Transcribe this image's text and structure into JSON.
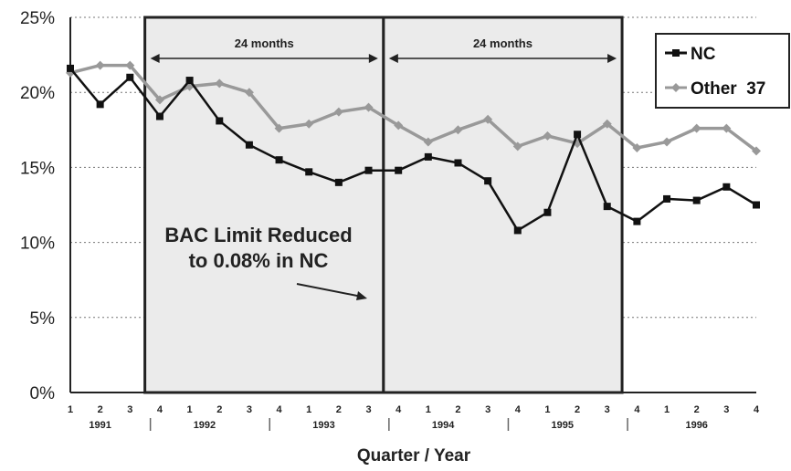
{
  "chart_data": {
    "type": "line",
    "xlabel": "Quarter / Year",
    "ylabel": "",
    "ylim": [
      0,
      25
    ],
    "y_ticks": [
      "0%",
      "5%",
      "10%",
      "15%",
      "20%",
      "25%"
    ],
    "x_quarters": [
      "1",
      "2",
      "3",
      "4",
      "1",
      "2",
      "3",
      "4",
      "1",
      "2",
      "3",
      "4",
      "1",
      "2",
      "3",
      "4",
      "1",
      "2",
      "3",
      "4",
      "1",
      "2",
      "3",
      "4"
    ],
    "years": [
      "1991",
      "1992",
      "1993",
      "1994",
      "1995",
      "1996"
    ],
    "series": [
      {
        "name": "NC",
        "color": "#111111",
        "marker": "square",
        "values": [
          21.6,
          19.2,
          21.0,
          18.4,
          20.8,
          18.1,
          16.5,
          15.5,
          14.7,
          14.0,
          14.8,
          14.8,
          15.7,
          15.3,
          14.1,
          10.8,
          12.0,
          17.2,
          12.4,
          11.4,
          12.9,
          12.8,
          13.7,
          12.5
        ]
      },
      {
        "name": "Other  37",
        "color": "#999999",
        "marker": "diamond",
        "values": [
          21.3,
          21.8,
          21.8,
          19.5,
          20.4,
          20.6,
          20.0,
          17.6,
          17.9,
          18.7,
          19.0,
          17.8,
          16.7,
          17.5,
          18.2,
          16.4,
          17.1,
          16.6,
          17.9,
          16.3,
          16.7,
          17.6,
          17.6,
          16.1
        ]
      }
    ],
    "grid": "horizontal",
    "legend": "top-right",
    "shaded_periods": [
      {
        "label": "24 months"
      },
      {
        "label": "24 months"
      }
    ],
    "annotation": {
      "line1": "BAC Limit Reduced",
      "line2": "to 0.08% in NC"
    }
  }
}
